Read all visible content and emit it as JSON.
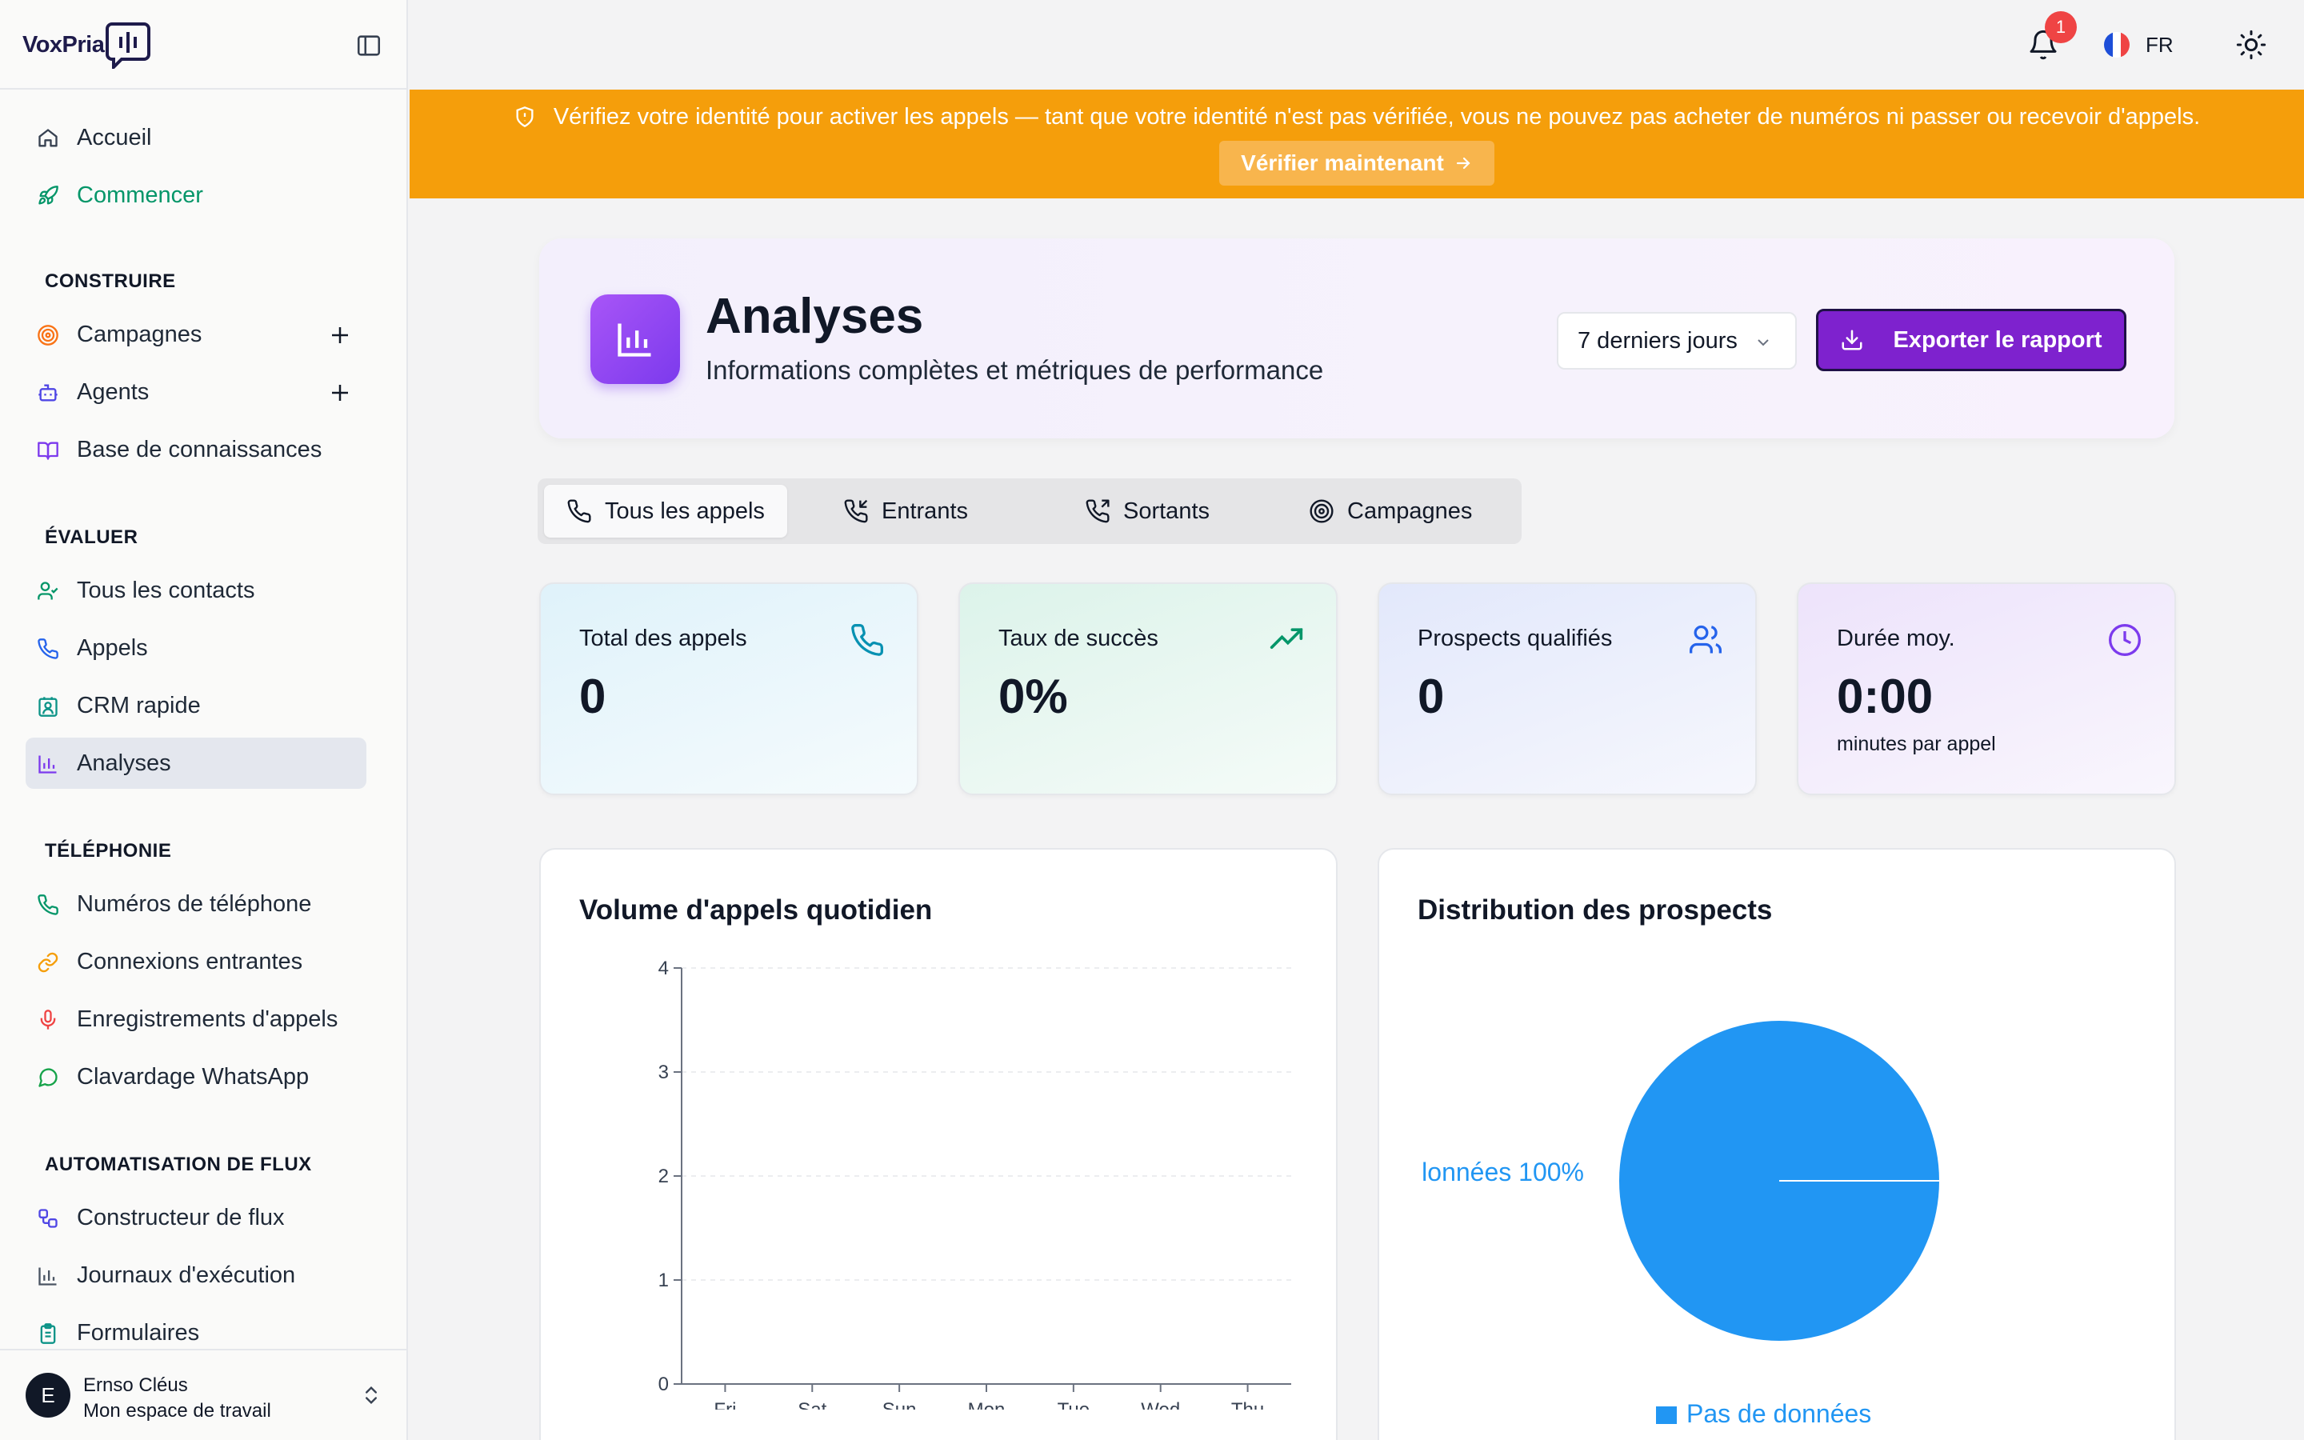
{
  "app": {
    "logo_text": "VoxPria"
  },
  "sidebar": {
    "top_items": [
      {
        "label": "Accueil",
        "icon": "home-icon"
      },
      {
        "label": "Commencer",
        "icon": "rocket-icon",
        "color": "#059669"
      }
    ],
    "sections": [
      {
        "title": "CONSTRUIRE",
        "items": [
          {
            "label": "Campagnes",
            "icon": "target-icon"
          },
          {
            "label": "Agents",
            "icon": "bot-icon"
          },
          {
            "label": "Base de connaissances",
            "icon": "book-icon"
          }
        ]
      },
      {
        "title": "ÉVALUER",
        "items": [
          {
            "label": "Tous les contacts",
            "icon": "user-check-icon"
          },
          {
            "label": "Appels",
            "icon": "phone-icon"
          },
          {
            "label": "CRM rapide",
            "icon": "contact-card-icon"
          },
          {
            "label": "Analyses",
            "icon": "bar-chart-icon",
            "active": true
          }
        ]
      },
      {
        "title": "TÉLÉPHONIE",
        "items": [
          {
            "label": "Numéros de téléphone",
            "icon": "phone-icon"
          },
          {
            "label": "Connexions entrantes",
            "icon": "link-icon"
          },
          {
            "label": "Enregistrements d'appels",
            "icon": "mic-icon"
          },
          {
            "label": "Clavardage WhatsApp",
            "icon": "chat-icon"
          }
        ]
      },
      {
        "title": "AUTOMATISATION DE FLUX",
        "items": [
          {
            "label": "Constructeur de flux",
            "icon": "workflow-icon"
          },
          {
            "label": "Journaux d'exécution",
            "icon": "bar-chart-icon"
          },
          {
            "label": "Formulaires",
            "icon": "clipboard-icon"
          }
        ]
      }
    ],
    "user": {
      "initial": "E",
      "name": "Ernso Cléus",
      "workspace": "Mon espace de travail"
    }
  },
  "topbar": {
    "notification_count": "1",
    "language": "FR"
  },
  "banner": {
    "text": "Vérifiez votre identité pour activer les appels — tant que votre identité n'est pas vérifiée, vous ne pouvez pas acheter de numéros ni passer ou recevoir d'appels.",
    "button": "Vérifier maintenant"
  },
  "header": {
    "title": "Analyses",
    "subtitle": "Informations complètes et métriques de performance",
    "range": "7 derniers jours",
    "export": "Exporter le rapport"
  },
  "tabs": [
    "Tous les appels",
    "Entrants",
    "Sortants",
    "Campagnes"
  ],
  "stats": [
    {
      "label": "Total des appels",
      "value": "0",
      "sub": "",
      "icon": "phone-icon"
    },
    {
      "label": "Taux de succès",
      "value": "0%",
      "sub": "",
      "icon": "trending-up-icon"
    },
    {
      "label": "Prospects qualifiés",
      "value": "0",
      "sub": "",
      "icon": "users-icon"
    },
    {
      "label": "Durée moy.",
      "value": "0:00",
      "sub": "minutes par appel",
      "icon": "clock-icon"
    }
  ],
  "panels": {
    "volume_title": "Volume d'appels quotidien",
    "distribution_title": "Distribution des prospects"
  },
  "chart_data": [
    {
      "type": "bar",
      "title": "Volume d'appels quotidien",
      "categories": [
        "Fri",
        "Sat",
        "Sun",
        "Mon",
        "Tue",
        "Wed",
        "Thu"
      ],
      "values": [
        0,
        0,
        0,
        0,
        0,
        0,
        0
      ],
      "yticks": [
        "0",
        "1",
        "2",
        "3",
        "4"
      ],
      "ylim": [
        0,
        4
      ],
      "grid": true
    },
    {
      "type": "pie",
      "title": "Distribution des prospects",
      "slices": [
        {
          "name": "Pas de données",
          "value": 100,
          "color": "#2196f3"
        }
      ],
      "slice_label": "lonnées 100%",
      "legend": "bottom"
    }
  ]
}
